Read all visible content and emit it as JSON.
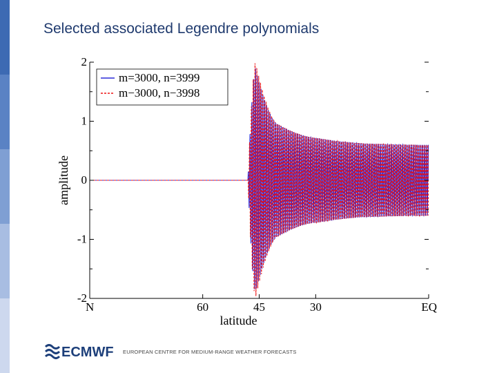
{
  "slide": {
    "title": "Selected associated Legendre polynomials",
    "footer_text": "EUROPEAN CENTRE FOR MEDIUM-RANGE WEATHER FORECASTS",
    "logo_text": "ECMWF"
  },
  "colors": {
    "sidebar": [
      "#3d6ab3",
      "#5a82c4",
      "#7f9fd3",
      "#a8bde2",
      "#cdd8ee"
    ],
    "title": "#1f3a6e",
    "series_1": "#2a2ad8",
    "series_2": "#ee1111"
  },
  "chart_data": {
    "type": "line",
    "title": "",
    "xlabel": "latitude",
    "ylabel": "amplitude",
    "x_ticks": [
      "N",
      "60",
      "45",
      "30",
      "EQ"
    ],
    "x_tick_values": [
      90,
      60,
      45,
      30,
      0
    ],
    "x_range": [
      90,
      0
    ],
    "y_ticks": [
      "2",
      "1",
      "0",
      "-1",
      "-2"
    ],
    "y_tick_values": [
      2,
      1,
      0,
      -1,
      -2
    ],
    "ylim": [
      -2,
      2
    ],
    "grid": false,
    "legend_position": "top-left",
    "series": [
      {
        "name": "m=3000, n=3999",
        "color": "#2a2ad8",
        "style": "solid",
        "zero_until_latitude": 48,
        "peak_latitude": 46,
        "peak_amplitude": 1.9,
        "amplitude_at_40": 0.95,
        "amplitude_at_30": 0.72,
        "amplitude_at_15": 0.62,
        "amplitude_at_0": 0.6
      },
      {
        "name": "m−3000, n−3998",
        "color": "#ee1111",
        "style": "dashed",
        "zero_until_latitude": 48,
        "peak_latitude": 46,
        "peak_amplitude": 2.0,
        "amplitude_at_40": 0.95,
        "amplitude_at_30": 0.72,
        "amplitude_at_15": 0.62,
        "amplitude_at_0": 0.6
      }
    ]
  }
}
